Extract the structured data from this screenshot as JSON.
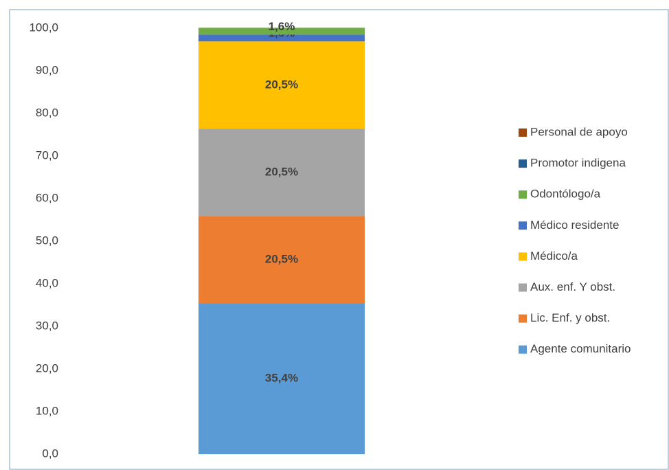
{
  "chart_data": {
    "type": "stacked_bar",
    "categories": [
      null
    ],
    "series": [
      {
        "name": "Agente comunitario",
        "color": "#5b9bd5",
        "values": [
          35.4
        ],
        "value_labels": [
          "35,4%"
        ]
      },
      {
        "name": "Lic. Enf. y obst.",
        "color": "#ed7d31",
        "values": [
          20.5
        ],
        "value_labels": [
          "20,5%"
        ]
      },
      {
        "name": "Aux. enf. Y obst.",
        "color": "#a5a5a5",
        "values": [
          20.5
        ],
        "value_labels": [
          "20,5%"
        ]
      },
      {
        "name": "Médico/a",
        "color": "#ffc000",
        "values": [
          20.5
        ],
        "value_labels": [
          "20,5%"
        ]
      },
      {
        "name": "Médico residente",
        "color": "#4472c4",
        "values": [
          1.6
        ],
        "value_labels": [
          "1,6%"
        ]
      },
      {
        "name": "Odontólogo/a",
        "color": "#70ad47",
        "values": [
          1.6
        ],
        "value_labels": [
          "1,6%"
        ]
      },
      {
        "name": "Promotor indigena",
        "color": "#255e91",
        "values": [
          0
        ]
      },
      {
        "name": "Personal de apoyo",
        "color": "#9e480e",
        "values": [
          0
        ]
      }
    ],
    "ylim": [
      0,
      100
    ],
    "yticks": [
      {
        "value": 0,
        "label": "0,0"
      },
      {
        "value": 10,
        "label": "10,0"
      },
      {
        "value": 20,
        "label": "20,0"
      },
      {
        "value": 30,
        "label": "30,0"
      },
      {
        "value": 40,
        "label": "40,0"
      },
      {
        "value": 50,
        "label": "50,0"
      },
      {
        "value": 60,
        "label": "60,0"
      },
      {
        "value": 70,
        "label": "70,0"
      },
      {
        "value": 80,
        "label": "80,0"
      },
      {
        "value": 90,
        "label": "90,0"
      },
      {
        "value": 100,
        "label": "100,0"
      }
    ],
    "legend": "right"
  }
}
